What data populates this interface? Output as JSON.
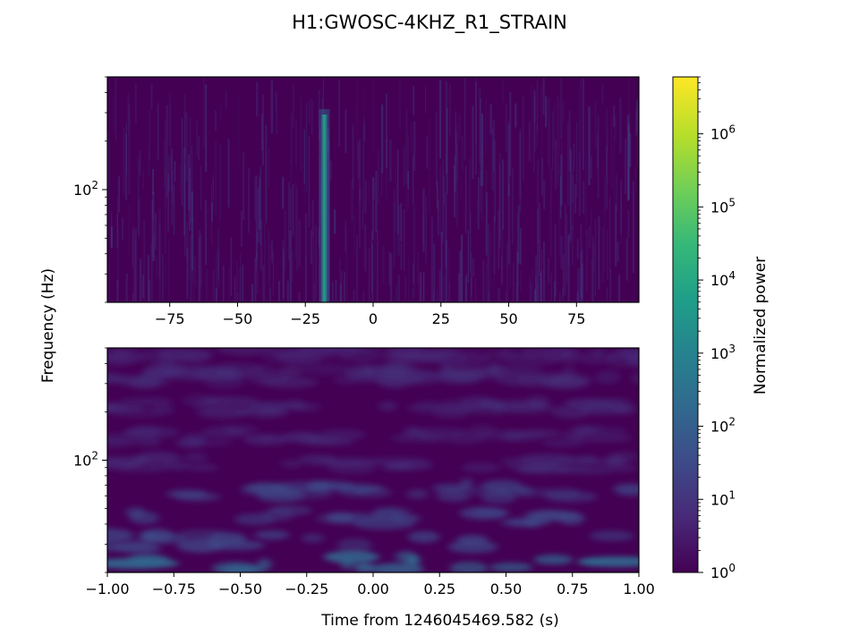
{
  "figure": {
    "title": "H1:GWOSC-4KHZ_R1_STRAIN",
    "ylabel": "Frequency (Hz)",
    "xlabel": "Time from 1246045469.582 (s)"
  },
  "chart_data": [
    {
      "type": "heatmap",
      "panel": "top",
      "xlim": [
        -98,
        98
      ],
      "x_ticks": [
        -75,
        -50,
        -25,
        0,
        25,
        50,
        75
      ],
      "x_tick_labels": [
        "−75",
        "−50",
        "−25",
        "0",
        "25",
        "50",
        "75"
      ],
      "yscale": "log",
      "ylim": [
        20,
        500
      ],
      "y_tick_major": [
        100
      ],
      "y_tick_labels": [
        {
          "base": "10",
          "exp": "2"
        }
      ],
      "features": [
        {
          "label": "vertical transient",
          "x_center": -18,
          "f_range": [
            20,
            300
          ],
          "power": 10000
        }
      ]
    },
    {
      "type": "heatmap",
      "panel": "bottom",
      "xlim": [
        -1.0,
        1.0
      ],
      "x_ticks": [
        -1.0,
        -0.75,
        -0.5,
        -0.25,
        0.0,
        0.25,
        0.5,
        0.75,
        1.0
      ],
      "x_tick_labels": [
        "−1.00",
        "−0.75",
        "−0.50",
        "−0.25",
        "0.00",
        "0.25",
        "0.50",
        "0.75",
        "1.00"
      ],
      "yscale": "log",
      "ylim": [
        20,
        500
      ],
      "y_tick_major": [
        100
      ],
      "y_tick_labels": [
        {
          "base": "10",
          "exp": "2"
        }
      ]
    }
  ],
  "colorbar": {
    "label": "Normalized power",
    "scale": "log",
    "colormap": "viridis",
    "range": [
      1,
      6000000
    ],
    "ticks": [
      {
        "value": 1,
        "base": "10",
        "exp": "0"
      },
      {
        "value": 10,
        "base": "10",
        "exp": "1"
      },
      {
        "value": 100,
        "base": "10",
        "exp": "2"
      },
      {
        "value": 1000,
        "base": "10",
        "exp": "3"
      },
      {
        "value": 10000,
        "base": "10",
        "exp": "4"
      },
      {
        "value": 100000,
        "base": "10",
        "exp": "5"
      },
      {
        "value": 1000000,
        "base": "10",
        "exp": "6"
      }
    ],
    "colors": [
      "#440154",
      "#482878",
      "#3e4a89",
      "#31688e",
      "#26828e",
      "#1f9e89",
      "#35b779",
      "#6ece58",
      "#b5de2b",
      "#fde725"
    ]
  }
}
